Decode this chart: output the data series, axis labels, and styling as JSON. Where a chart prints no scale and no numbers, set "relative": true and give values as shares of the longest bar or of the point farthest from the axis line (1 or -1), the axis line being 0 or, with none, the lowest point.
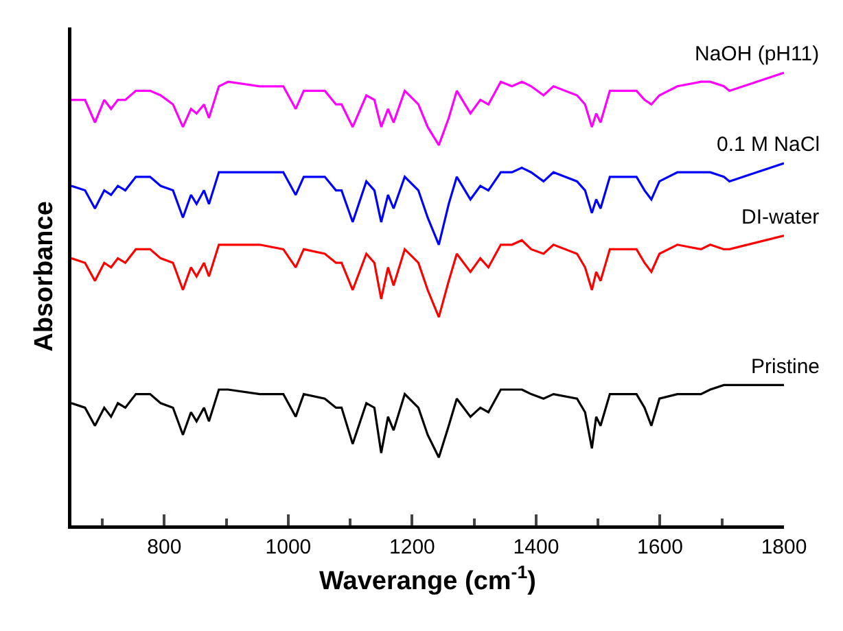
{
  "chart_data": {
    "type": "line",
    "relative": true,
    "xlabel": "Waverange (cm$^{-1}$)",
    "ylabel": "Absorbance",
    "xlim": [
      650,
      1800
    ],
    "xticks": [
      {
        "value": 700,
        "label": null
      },
      800,
      {
        "value": 900,
        "label": null
      },
      1000,
      {
        "value": 1100,
        "label": null
      },
      1200,
      {
        "value": 1300,
        "label": null
      },
      1400,
      {
        "value": 1500,
        "label": null
      },
      1600,
      {
        "value": 1700,
        "label": null
      },
      1800
    ],
    "tick_labels": "x",
    "legend": false,
    "grid": false,
    "marker": "none",
    "line_style": "solid",
    "x": [
      650,
      672,
      688,
      703,
      714,
      725,
      737,
      754,
      777,
      794,
      814,
      830,
      843,
      852,
      864,
      872,
      888,
      903,
      954,
      992,
      1012,
      1025,
      1059,
      1077,
      1086,
      1104,
      1126,
      1139,
      1150,
      1161,
      1170,
      1188,
      1210,
      1225,
      1243,
      1259,
      1272,
      1294,
      1310,
      1323,
      1343,
      1361,
      1377,
      1392,
      1412,
      1428,
      1466,
      1479,
      1490,
      1497,
      1504,
      1519,
      1562,
      1575,
      1586,
      1599,
      1628,
      1666,
      1681,
      1703,
      1712,
      1800
    ],
    "series": [
      {
        "name": "Pristine",
        "color": "#000000",
        "values": [
          0.27,
          0.26,
          0.22,
          0.26,
          0.24,
          0.27,
          0.26,
          0.29,
          0.29,
          0.27,
          0.26,
          0.2,
          0.25,
          0.23,
          0.26,
          0.23,
          0.3,
          0.3,
          0.29,
          0.29,
          0.24,
          0.29,
          0.28,
          0.26,
          0.26,
          0.18,
          0.27,
          0.26,
          0.16,
          0.24,
          0.21,
          0.29,
          0.26,
          0.2,
          0.15,
          0.22,
          0.28,
          0.24,
          0.26,
          0.25,
          0.3,
          0.3,
          0.3,
          0.29,
          0.28,
          0.29,
          0.28,
          0.25,
          0.17,
          0.24,
          0.22,
          0.29,
          0.29,
          0.26,
          0.22,
          0.28,
          0.29,
          0.29,
          0.3,
          0.31,
          0.31,
          0.31
        ]
      },
      {
        "name": "DI-water",
        "color": "#ff0000",
        "values": [
          0.59,
          0.58,
          0.54,
          0.58,
          0.57,
          0.59,
          0.58,
          0.61,
          0.61,
          0.59,
          0.58,
          0.52,
          0.57,
          0.55,
          0.58,
          0.55,
          0.62,
          0.62,
          0.62,
          0.61,
          0.57,
          0.61,
          0.6,
          0.58,
          0.58,
          0.52,
          0.6,
          0.58,
          0.5,
          0.57,
          0.53,
          0.61,
          0.58,
          0.52,
          0.46,
          0.54,
          0.6,
          0.56,
          0.59,
          0.57,
          0.62,
          0.62,
          0.63,
          0.61,
          0.6,
          0.62,
          0.6,
          0.57,
          0.52,
          0.56,
          0.54,
          0.61,
          0.61,
          0.58,
          0.56,
          0.6,
          0.62,
          0.61,
          0.62,
          0.61,
          0.61,
          0.64
        ]
      },
      {
        "name": "0.1 M NaCl",
        "color": "#0000ff",
        "values": [
          0.75,
          0.74,
          0.7,
          0.74,
          0.73,
          0.75,
          0.74,
          0.77,
          0.77,
          0.75,
          0.74,
          0.68,
          0.73,
          0.71,
          0.74,
          0.71,
          0.78,
          0.78,
          0.78,
          0.78,
          0.73,
          0.77,
          0.77,
          0.74,
          0.74,
          0.67,
          0.76,
          0.74,
          0.67,
          0.73,
          0.7,
          0.77,
          0.74,
          0.68,
          0.62,
          0.71,
          0.77,
          0.72,
          0.75,
          0.74,
          0.78,
          0.78,
          0.79,
          0.78,
          0.76,
          0.78,
          0.76,
          0.74,
          0.69,
          0.72,
          0.7,
          0.77,
          0.77,
          0.74,
          0.72,
          0.76,
          0.78,
          0.78,
          0.78,
          0.77,
          0.76,
          0.8
        ]
      },
      {
        "name": "NaOH (pH11)",
        "color": "#ff00ff",
        "values": [
          0.94,
          0.94,
          0.89,
          0.94,
          0.92,
          0.94,
          0.94,
          0.96,
          0.96,
          0.95,
          0.93,
          0.88,
          0.92,
          0.91,
          0.93,
          0.9,
          0.97,
          0.98,
          0.97,
          0.97,
          0.92,
          0.96,
          0.96,
          0.93,
          0.93,
          0.88,
          0.95,
          0.94,
          0.88,
          0.92,
          0.89,
          0.96,
          0.93,
          0.88,
          0.84,
          0.9,
          0.96,
          0.91,
          0.94,
          0.93,
          0.98,
          0.97,
          0.98,
          0.97,
          0.95,
          0.97,
          0.95,
          0.93,
          0.88,
          0.91,
          0.89,
          0.96,
          0.96,
          0.94,
          0.93,
          0.95,
          0.97,
          0.98,
          0.98,
          0.97,
          0.96,
          1
        ]
      }
    ]
  }
}
